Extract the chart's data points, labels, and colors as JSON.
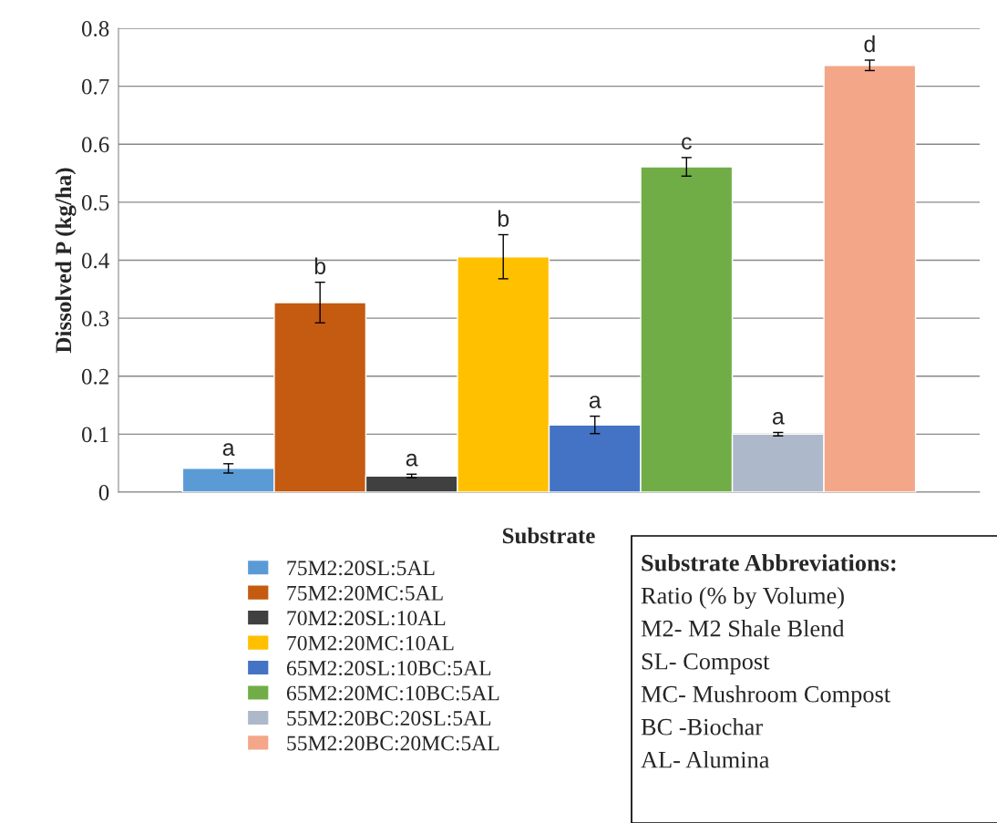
{
  "chart_data": {
    "type": "bar",
    "xlabel": "Substrate",
    "ylabel": "Dissolved P (kg/ha)",
    "categories": [
      null
    ],
    "series": [
      {
        "name": "75M2:20SL:5AL",
        "color": "#5b9bd5",
        "values": [
          0.041
        ],
        "errors": [
          0.008
        ],
        "value_labels": [
          "a"
        ]
      },
      {
        "name": "75M2:20MC:5AL",
        "color": "#c55a11",
        "values": [
          0.327
        ],
        "errors": [
          0.035
        ],
        "value_labels": [
          "b"
        ]
      },
      {
        "name": "70M2:20SL:10AL",
        "color": "#404040",
        "values": [
          0.028
        ],
        "errors": [
          0.003
        ],
        "value_labels": [
          "a"
        ]
      },
      {
        "name": "70M2:20MC:10AL",
        "color": "#ffc000",
        "values": [
          0.406
        ],
        "errors": [
          0.038
        ],
        "value_labels": [
          "b"
        ]
      },
      {
        "name": "65M2:20SL:10BC:5AL",
        "color": "#4472c4",
        "values": [
          0.116
        ],
        "errors": [
          0.015
        ],
        "value_labels": [
          "a"
        ]
      },
      {
        "name": "65M2:20MC:10BC:5AL",
        "color": "#70ad47",
        "values": [
          0.561
        ],
        "errors": [
          0.016
        ],
        "value_labels": [
          "c"
        ]
      },
      {
        "name": "55M2:20BC:20SL:5AL",
        "color": "#adb9ca",
        "values": [
          0.1
        ],
        "errors": [
          0.003
        ],
        "value_labels": [
          "a"
        ]
      },
      {
        "name": "55M2:20BC:20MC:5AL",
        "color": "#f4a688",
        "values": [
          0.736
        ],
        "errors": [
          0.009
        ],
        "value_labels": [
          "d"
        ]
      }
    ],
    "ylim": [
      0,
      0.8
    ],
    "yticks": [
      0,
      0.1,
      0.2,
      0.3,
      0.4,
      0.5,
      0.6,
      0.7,
      0.8
    ],
    "grid": "y",
    "legend": "bottom",
    "annotations": [
      "Substrate Abbreviations:",
      "Ratio (% by Volume)",
      "M2- M2 Shale Blend",
      "SL- Compost",
      "MC- Mushroom Compost",
      "BC -Biochar",
      "AL- Alumina"
    ]
  }
}
